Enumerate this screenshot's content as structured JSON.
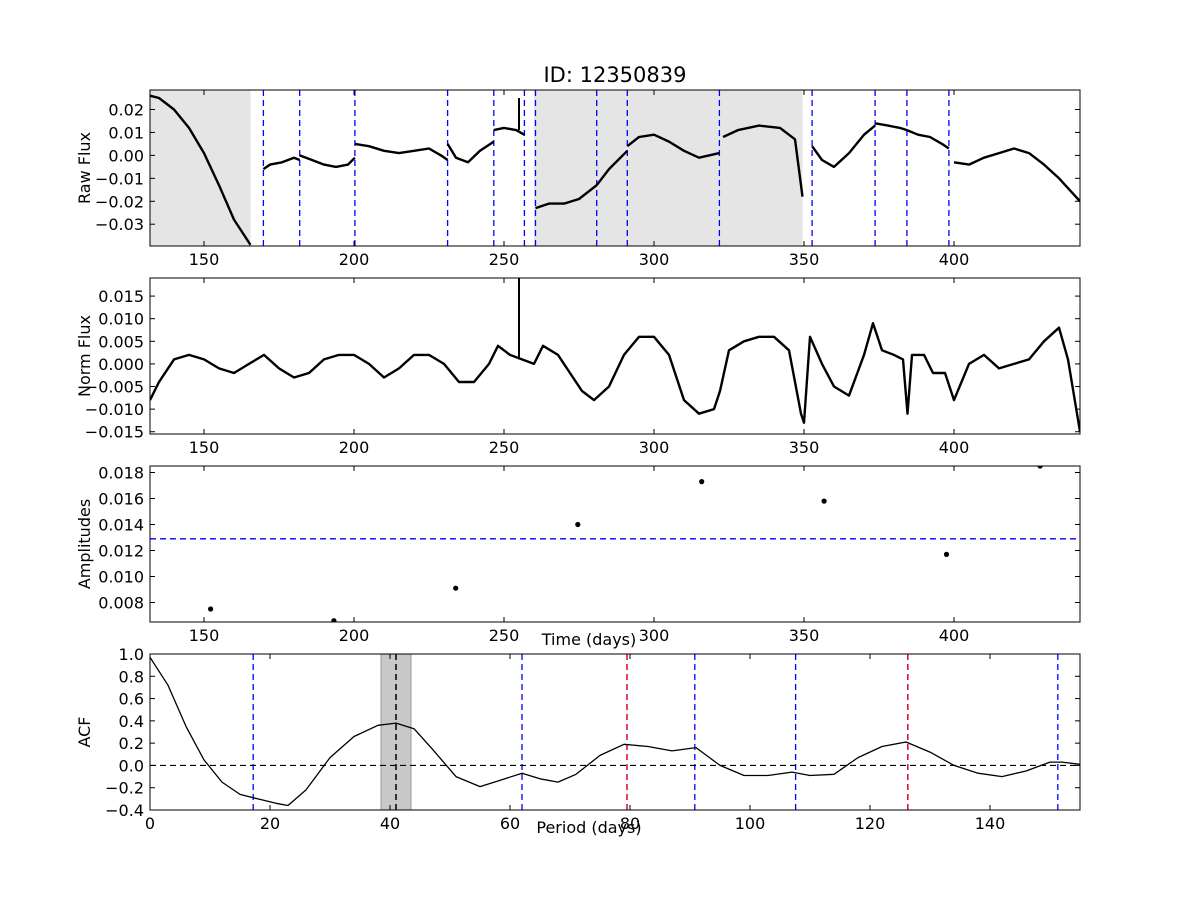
{
  "title": "ID: 12350839",
  "colors": {
    "line": "#000000",
    "blue_dash": "#0000ff",
    "red_dash": "#dc143c",
    "light_shade": "#e5e5e5",
    "dark_shade": "#c8c8c8"
  },
  "chart_data": [
    {
      "type": "line",
      "name": "raw-flux",
      "ylabel": "Raw Flux",
      "xlabel": "",
      "xlim": [
        132,
        442
      ],
      "ylim": [
        -0.0395,
        0.0285
      ],
      "xticks": [
        150,
        200,
        250,
        300,
        350,
        400
      ],
      "yticks": [
        -0.03,
        -0.02,
        -0.01,
        0.0,
        0.01,
        0.02
      ],
      "ytick_labels": [
        "−0.03",
        "−0.02",
        "−0.01",
        "0.00",
        "0.01",
        "0.02"
      ],
      "shaded_regions": [
        [
          132,
          165.5
        ],
        [
          260,
          349.5
        ]
      ],
      "vlines_blue": [
        169.8,
        181.9,
        200.3,
        231.2,
        246.6,
        256.8,
        260.5,
        280.9,
        291.1,
        321.8,
        352.7,
        373.7,
        384.3,
        398.3
      ],
      "segments": [
        {
          "x": [
            132,
            135,
            140,
            145,
            150,
            155,
            160,
            165.5
          ],
          "y": [
            0.026,
            0.025,
            0.02,
            0.012,
            0.001,
            -0.013,
            -0.028,
            -0.039
          ]
        },
        {
          "x": [
            169.8,
            172,
            176,
            180,
            181.9
          ],
          "y": [
            -0.006,
            -0.004,
            -0.003,
            -0.001,
            -0.002
          ]
        },
        {
          "x": [
            181.9,
            186,
            190,
            194,
            198,
            200.3
          ],
          "y": [
            0.0,
            -0.002,
            -0.004,
            -0.005,
            -0.004,
            -0.001
          ]
        },
        {
          "x": [
            200.3,
            205,
            210,
            215,
            220,
            225,
            229,
            231.2
          ],
          "y": [
            0.005,
            0.004,
            0.002,
            0.001,
            0.002,
            0.003,
            0.0,
            -0.002
          ]
        },
        {
          "x": [
            231.2,
            234,
            238,
            242,
            246.6
          ],
          "y": [
            0.005,
            -0.001,
            -0.003,
            0.002,
            0.006
          ]
        },
        {
          "x": [
            246.6,
            250,
            254,
            256.8
          ],
          "y": [
            0.011,
            0.012,
            0.011,
            0.009
          ]
        },
        {
          "x": [
            260.5,
            265,
            270,
            275,
            280.9
          ],
          "y": [
            -0.023,
            -0.021,
            -0.021,
            -0.019,
            -0.013
          ]
        },
        {
          "x": [
            280.9,
            285,
            291.1
          ],
          "y": [
            -0.013,
            -0.006,
            0.002
          ]
        },
        {
          "x": [
            291.1,
            295,
            300,
            305,
            310,
            315,
            321.8
          ],
          "y": [
            0.004,
            0.008,
            0.009,
            0.006,
            0.002,
            -0.001,
            0.001
          ]
        },
        {
          "x": [
            323,
            328,
            335,
            342,
            347,
            349.5
          ],
          "y": [
            0.008,
            0.011,
            0.013,
            0.012,
            0.007,
            -0.018
          ]
        },
        {
          "x": [
            352.7,
            356,
            360,
            365,
            370,
            373.7
          ],
          "y": [
            0.004,
            -0.002,
            -0.005,
            0.001,
            0.009,
            0.013
          ]
        },
        {
          "x": [
            373.7,
            378,
            382,
            384.3
          ],
          "y": [
            0.014,
            0.013,
            0.012,
            0.011
          ]
        },
        {
          "x": [
            384.3,
            388,
            392,
            396,
            398.3
          ],
          "y": [
            0.011,
            0.009,
            0.008,
            0.005,
            0.003
          ]
        },
        {
          "x": [
            400,
            405,
            410,
            415,
            420,
            425,
            430,
            435,
            442
          ],
          "y": [
            -0.003,
            -0.004,
            -0.001,
            0.001,
            0.003,
            0.001,
            -0.004,
            -0.01,
            -0.02
          ]
        }
      ],
      "spikes": [
        {
          "x": 255,
          "y0": 0.011,
          "y1": 0.025
        }
      ]
    },
    {
      "type": "line",
      "name": "norm-flux",
      "ylabel": "Norm Flux",
      "xlabel": "",
      "xlim": [
        132,
        442
      ],
      "ylim": [
        -0.0155,
        0.019
      ],
      "xticks": [
        150,
        200,
        250,
        300,
        350,
        400
      ],
      "yticks": [
        -0.015,
        -0.01,
        -0.005,
        0.0,
        0.005,
        0.01,
        0.015
      ],
      "ytick_labels": [
        "−0.015",
        "−0.010",
        "−0.005",
        "0.000",
        "0.005",
        "0.010",
        "0.015"
      ],
      "x": [
        132,
        135,
        140,
        145,
        150,
        155,
        160,
        165,
        170,
        175,
        180,
        185,
        190,
        195,
        200,
        205,
        210,
        215,
        220,
        225,
        230,
        235,
        240,
        245,
        248,
        252,
        256,
        260,
        263,
        268,
        272,
        276,
        280,
        285,
        290,
        295,
        300,
        305,
        310,
        315,
        320,
        322,
        325,
        330,
        335,
        340,
        345,
        349,
        350,
        352,
        356,
        360,
        365,
        370,
        373,
        376,
        380,
        383,
        384.5,
        386,
        390,
        393,
        397,
        400,
        405,
        410,
        415,
        420,
        425,
        430,
        435,
        438,
        442
      ],
      "y": [
        -0.008,
        -0.004,
        0.001,
        0.002,
        0.001,
        -0.001,
        -0.002,
        0.0,
        0.002,
        -0.001,
        -0.003,
        -0.002,
        0.001,
        0.002,
        0.002,
        0.0,
        -0.003,
        -0.001,
        0.002,
        0.002,
        0.0,
        -0.004,
        -0.004,
        0.0,
        0.004,
        0.002,
        0.001,
        0.0,
        0.004,
        0.002,
        -0.002,
        -0.006,
        -0.008,
        -0.005,
        0.002,
        0.006,
        0.006,
        0.002,
        -0.008,
        -0.011,
        -0.01,
        -0.006,
        0.003,
        0.005,
        0.006,
        0.006,
        0.003,
        -0.011,
        -0.013,
        0.006,
        0.0,
        -0.005,
        -0.007,
        0.002,
        0.009,
        0.003,
        0.002,
        0.001,
        -0.011,
        0.002,
        0.002,
        -0.002,
        -0.002,
        -0.008,
        0.0,
        0.002,
        -0.001,
        0.0,
        0.001,
        0.005,
        0.008,
        0.001,
        -0.015
      ],
      "spikes": [
        {
          "x": 255,
          "y0": 0.001,
          "y1": 0.019
        }
      ]
    },
    {
      "type": "scatter",
      "name": "amplitudes",
      "ylabel": "Amplitudes",
      "xlabel": "Time (days)",
      "xlim": [
        132,
        442
      ],
      "ylim": [
        0.0065,
        0.0185
      ],
      "xticks": [
        150,
        200,
        250,
        300,
        350,
        400
      ],
      "yticks": [
        0.008,
        0.01,
        0.012,
        0.014,
        0.016,
        0.018
      ],
      "ytick_labels": [
        "0.008",
        "0.010",
        "0.012",
        "0.014",
        "0.016",
        "0.018"
      ],
      "x": [
        152.2,
        193.3,
        233.9,
        274.6,
        315.9,
        356.7,
        397.5,
        428.7
      ],
      "y": [
        0.0075,
        0.0066,
        0.0091,
        0.014,
        0.0173,
        0.0158,
        0.0117,
        0.0185
      ],
      "hline_blue": 0.0129
    },
    {
      "type": "line",
      "name": "acf",
      "ylabel": "ACF",
      "xlabel": "Period (days)",
      "xlim": [
        0,
        155
      ],
      "ylim": [
        -0.4,
        1.0
      ],
      "xticks": [
        0,
        20,
        40,
        60,
        80,
        100,
        120,
        140
      ],
      "yticks": [
        -0.4,
        -0.2,
        0.0,
        0.2,
        0.4,
        0.6,
        0.8,
        1.0
      ],
      "ytick_labels": [
        "−0.4",
        "−0.2",
        "0.0",
        "0.2",
        "0.4",
        "0.6",
        "0.8",
        "1.0"
      ],
      "x": [
        0,
        3,
        6,
        9,
        12,
        15,
        18,
        21,
        23,
        26,
        30,
        34,
        38,
        41,
        44,
        47,
        51,
        55,
        58,
        62,
        65,
        68,
        71,
        75,
        79,
        83,
        87,
        91,
        95,
        99,
        103,
        107,
        110,
        114,
        118,
        122,
        126,
        130,
        134,
        138,
        142,
        146,
        150,
        152,
        155
      ],
      "y": [
        0.97,
        0.72,
        0.35,
        0.05,
        -0.15,
        -0.26,
        -0.3,
        -0.34,
        -0.36,
        -0.22,
        0.07,
        0.26,
        0.36,
        0.38,
        0.33,
        0.15,
        -0.1,
        -0.19,
        -0.14,
        -0.07,
        -0.12,
        -0.15,
        -0.08,
        0.09,
        0.19,
        0.17,
        0.13,
        0.16,
        0.0,
        -0.09,
        -0.09,
        -0.06,
        -0.09,
        -0.08,
        0.07,
        0.17,
        0.21,
        0.12,
        0.0,
        -0.07,
        -0.1,
        -0.05,
        0.03,
        0.03,
        0.01
      ],
      "shaded_regions": [
        [
          38.5,
          43.5
        ]
      ],
      "hline_dashed": 0.0,
      "vline_black": [
        41
      ],
      "vlines_blue": [
        17.2,
        62,
        90.8,
        107.6,
        151.3
      ],
      "vlines_red": [
        79.5,
        126.3
      ]
    }
  ]
}
